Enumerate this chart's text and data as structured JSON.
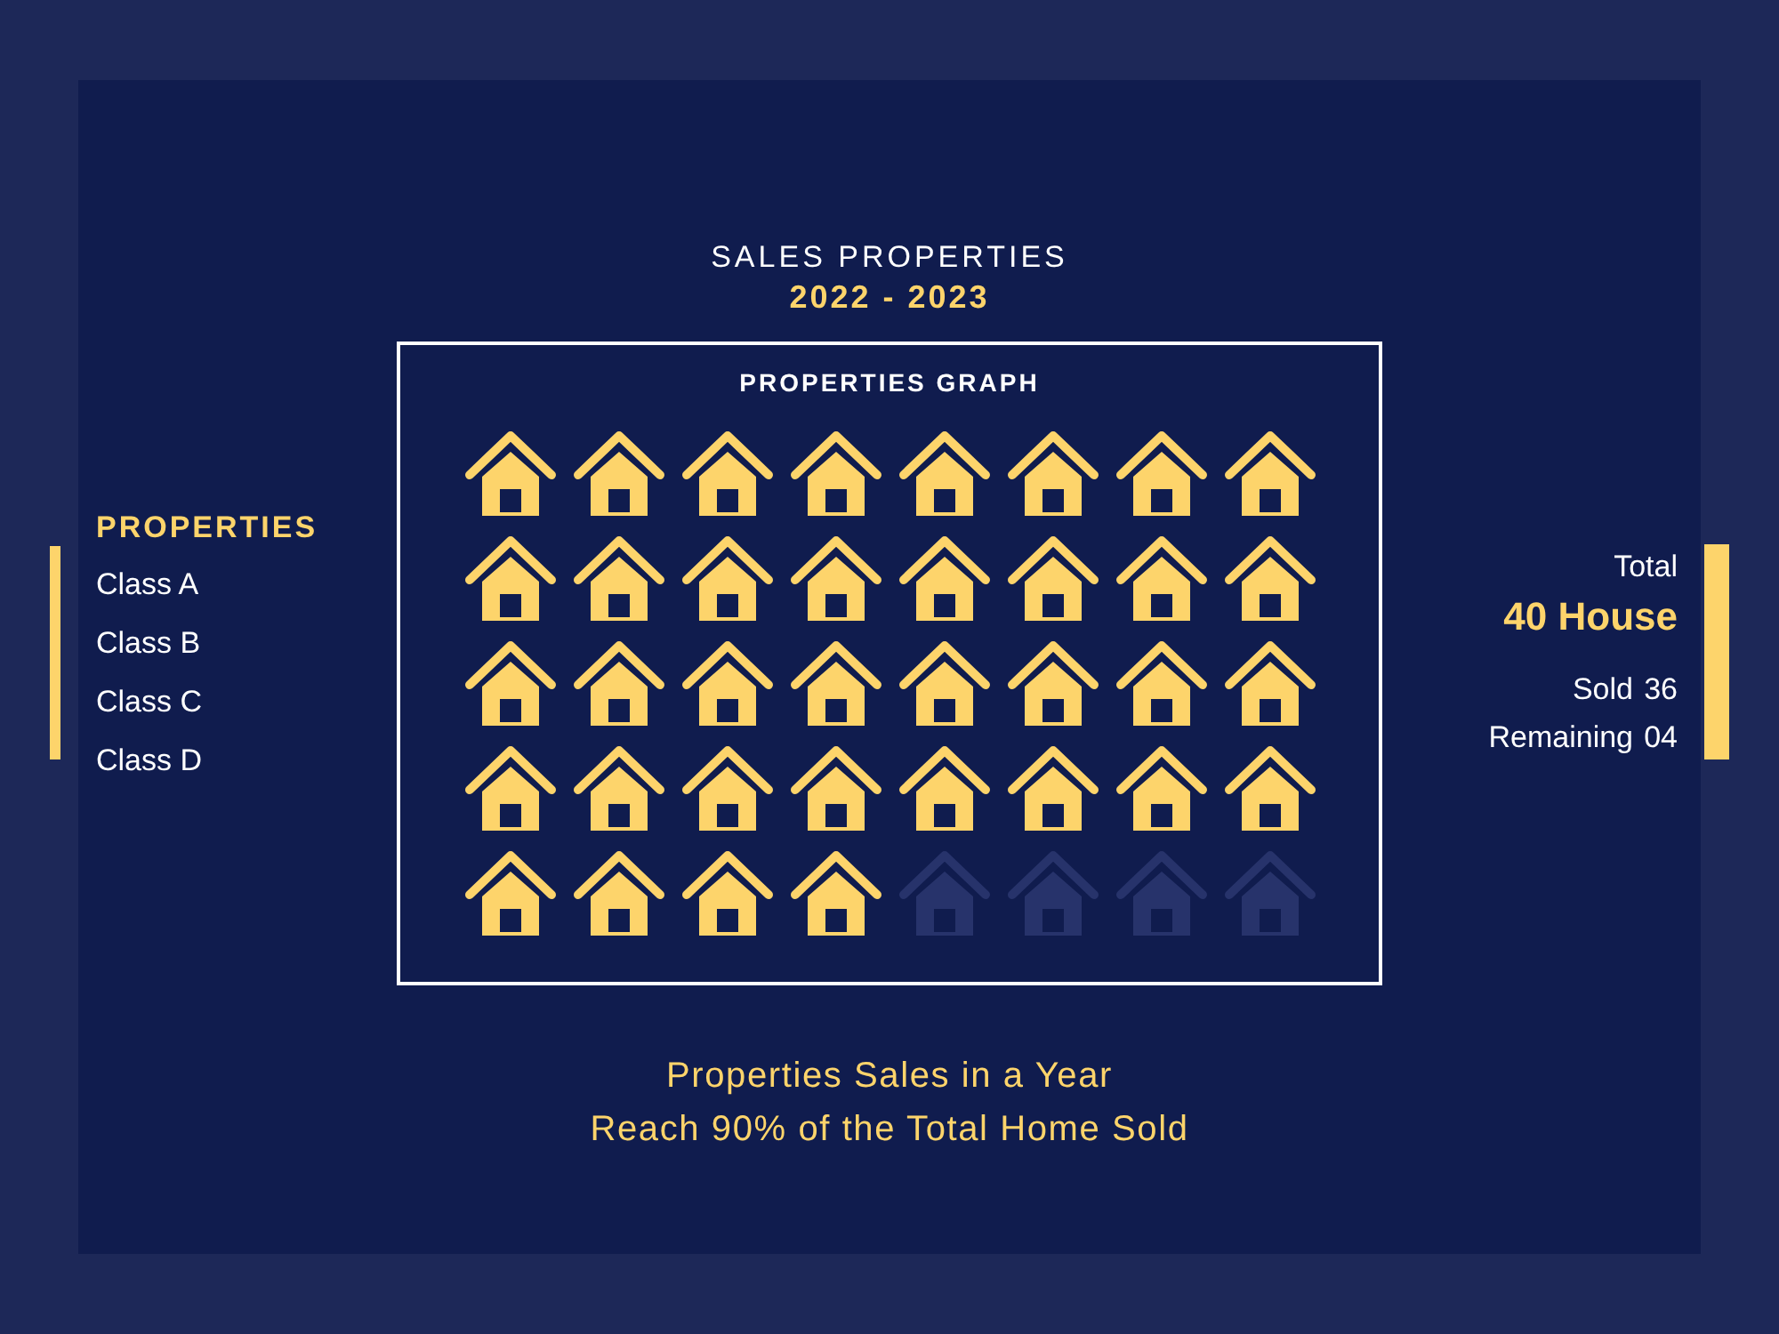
{
  "chart_data": {
    "type": "other",
    "title": "PROPERTIES GRAPH",
    "subtitle": "SALES PROPERTIES",
    "categories": [
      "Sold",
      "Remaining"
    ],
    "values": [
      36,
      4
    ],
    "value_labels": [
      "36",
      "04"
    ],
    "colors": [
      "#fdd46b",
      "#27336b"
    ],
    "annotations": [
      "2022 - 2023",
      "PROPERTIES",
      "Class A",
      "Class B",
      "Class C",
      "Class D",
      "Total",
      "40 House",
      "Properties Sales in a Year",
      "Reach 90% of the Total Home Sold"
    ]
  }
}
